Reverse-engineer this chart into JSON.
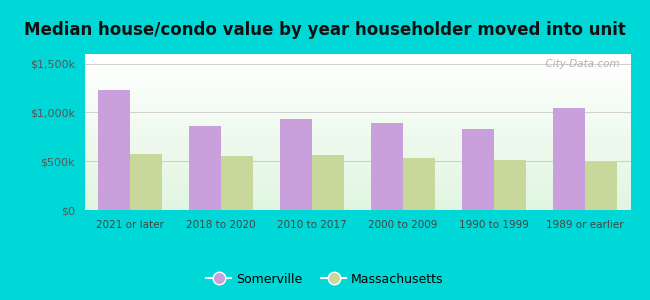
{
  "title": "Median house/condo value by year householder moved into unit",
  "categories": [
    "2021 or later",
    "2018 to 2020",
    "2010 to 2017",
    "2000 to 2009",
    "1990 to 1999",
    "1989 or earlier"
  ],
  "somerville_values": [
    1230000,
    860000,
    930000,
    890000,
    835000,
    1050000
  ],
  "massachusetts_values": [
    570000,
    555000,
    565000,
    535000,
    515000,
    490000
  ],
  "somerville_color": "#c9a0dc",
  "massachusetts_color": "#c8d89a",
  "background_outer": "#00d8d8",
  "grid_color": "#c8c8c8",
  "ylabel_values": [
    0,
    500000,
    1000000,
    1500000
  ],
  "ylabel_labels": [
    "$0",
    "$500k",
    "$1,000k",
    "$1,500k"
  ],
  "ylim": [
    0,
    1600000
  ],
  "watermark": "  City-Data.com",
  "legend_somerville": "Somerville",
  "legend_massachusetts": "Massachusetts",
  "title_fontsize": 12,
  "bar_width": 0.35,
  "tick_fontsize": 7.5,
  "ytick_fontsize": 8
}
